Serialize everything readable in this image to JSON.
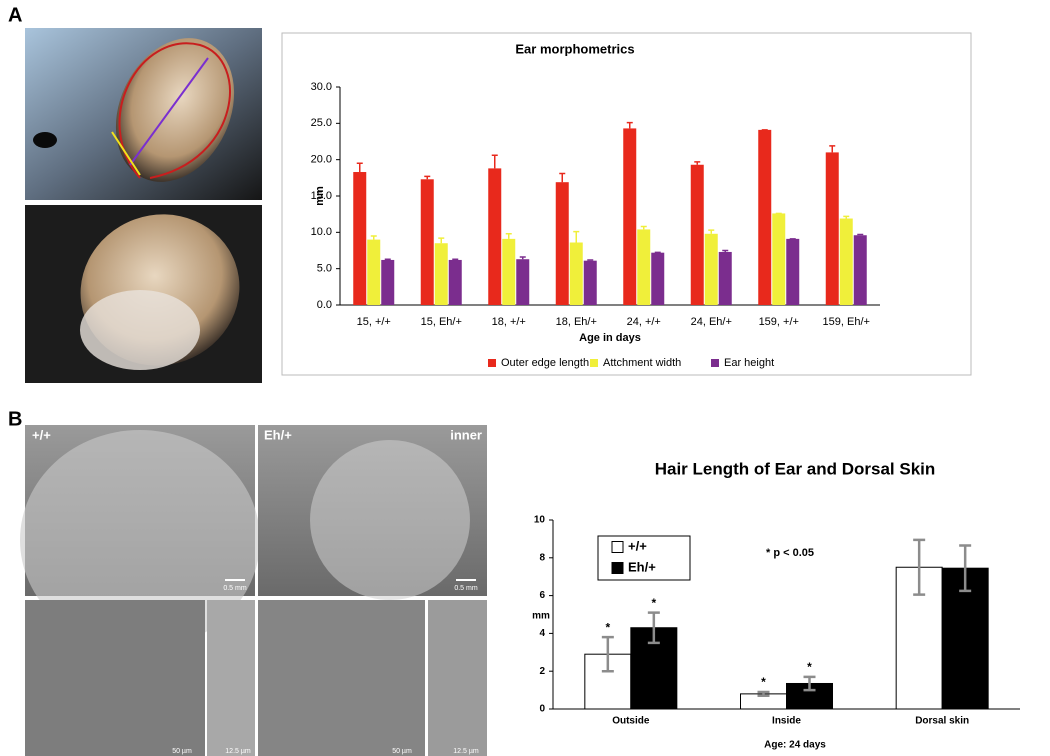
{
  "panels": [
    "A",
    "B"
  ],
  "photos": {
    "labels": [
      "+/+",
      "Eh/+",
      "inner"
    ],
    "scale_bars": [
      "0.5 mm",
      "0.5 mm",
      "50 µm",
      "12.5 µm",
      "50 µm",
      "12.5 µm"
    ]
  },
  "chart_data": [
    {
      "type": "bar",
      "title": "Ear morphometrics",
      "xlabel": "Age in days",
      "ylabel": "mm",
      "categories": [
        "15, +/+",
        "15, Eh/+",
        "18, +/+",
        "18, Eh/+",
        "24, +/+",
        "24, Eh/+",
        "159, +/+",
        "159, Eh/+"
      ],
      "series": [
        {
          "name": "Outer edge length",
          "color": "#e8291c",
          "values": [
            18.3,
            17.3,
            18.8,
            16.9,
            24.3,
            19.3,
            24.1,
            21.0
          ],
          "errors": [
            1.2,
            0.4,
            1.8,
            1.2,
            0.8,
            0.4,
            0,
            0.9
          ]
        },
        {
          "name": "Attchment width",
          "color": "#f0ef3a",
          "values": [
            9.0,
            8.5,
            9.1,
            8.6,
            10.4,
            9.8,
            12.6,
            11.9
          ],
          "errors": [
            0.5,
            0.7,
            0.7,
            1.5,
            0.4,
            0.5,
            0,
            0.3
          ]
        },
        {
          "name": "Ear height",
          "color": "#7b2d8e",
          "values": [
            6.2,
            6.2,
            6.3,
            6.1,
            7.2,
            7.3,
            9.1,
            9.6
          ],
          "errors": [
            0.1,
            0.1,
            0.3,
            0.1,
            0.05,
            0.2,
            0,
            0.1
          ]
        }
      ],
      "ylim": [
        0,
        30
      ],
      "yticks": [
        {
          "value": 0,
          "label": "0.0"
        },
        {
          "value": 5,
          "label": "5.0"
        },
        {
          "value": 10,
          "label": "10.0"
        },
        {
          "value": 15,
          "label": "15.0"
        },
        {
          "value": 20,
          "label": "20.0"
        },
        {
          "value": 25,
          "label": "25.0"
        },
        {
          "value": 30,
          "label": "30.0"
        }
      ],
      "legend": "bottom",
      "grid": false
    },
    {
      "type": "bar",
      "title": "Hair Length of Ear and Dorsal Skin",
      "xlabel": "Age:  24 days",
      "ylabel": "mm",
      "annotations": [
        "* p < 0.05"
      ],
      "categories": [
        "Outside",
        "Inside",
        "Dorsal skin"
      ],
      "series": [
        {
          "name": "+/+",
          "color": "#ffffff",
          "values": [
            2.9,
            0.8,
            7.5
          ],
          "errors": [
            0.9,
            0.1,
            1.45
          ],
          "significance": [
            "*",
            "*",
            null
          ]
        },
        {
          "name": "Eh/+",
          "color": "#000000",
          "values": [
            4.3,
            1.35,
            7.45
          ],
          "errors": [
            0.8,
            0.35,
            1.2
          ],
          "significance": [
            "*",
            "*",
            null
          ]
        }
      ],
      "error_color": "#8c8c8c",
      "ylim": [
        0,
        10
      ],
      "yticks": [
        0,
        2,
        4,
        6,
        8,
        10
      ],
      "legend": "upper left",
      "grid": false
    }
  ]
}
